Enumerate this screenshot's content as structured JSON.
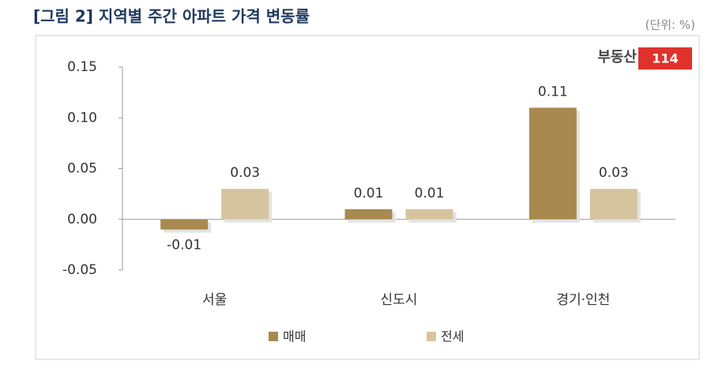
{
  "chart_data": {
    "type": "bar",
    "title": "[그림 2] 지역별 주간 아파트 가격 변동률",
    "unit_label": "(단위: %)",
    "logo": {
      "name": "부동산",
      "number": "114"
    },
    "categories": [
      "서울",
      "신도시",
      "경기·인천"
    ],
    "series": [
      {
        "name": "매매",
        "color": "#a8894f",
        "values": [
          -0.01,
          0.01,
          0.11
        ]
      },
      {
        "name": "전세",
        "color": "#d6c49f",
        "values": [
          0.03,
          0.01,
          0.03
        ]
      }
    ],
    "ylim": [
      -0.05,
      0.15
    ],
    "yticks": [
      {
        "value": -0.05,
        "label": "-0.05"
      },
      {
        "value": 0,
        "label": "0.00"
      },
      {
        "value": 0.05,
        "label": "0.05"
      },
      {
        "value": 0.1,
        "label": "0.10"
      },
      {
        "value": 0.15,
        "label": "0.15"
      }
    ],
    "grid": false,
    "legend": "bottom"
  }
}
